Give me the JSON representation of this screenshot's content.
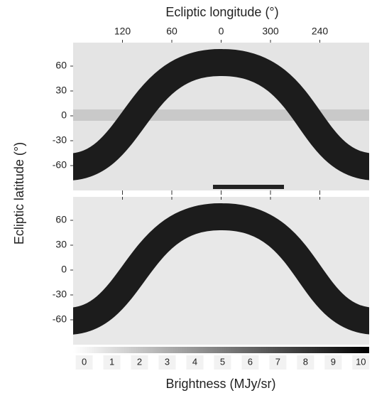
{
  "chart_data": {
    "type": "skymap",
    "xlabel": "Ecliptic longitude (°)",
    "ylabel": "Ecliptic latitude (°)",
    "xlim": [
      180,
      -180
    ],
    "xticks": [
      120,
      60,
      0,
      300,
      240
    ],
    "ylim": [
      -90,
      90
    ],
    "yticks": [
      60,
      30,
      0,
      -30,
      -60
    ],
    "colorbar": {
      "label": "Brightness (MJy/sr)",
      "lim": [
        -0.4,
        10.3
      ],
      "ticks": [
        0,
        1,
        2,
        3,
        4,
        5,
        6,
        7,
        8,
        9,
        10
      ]
    }
  }
}
